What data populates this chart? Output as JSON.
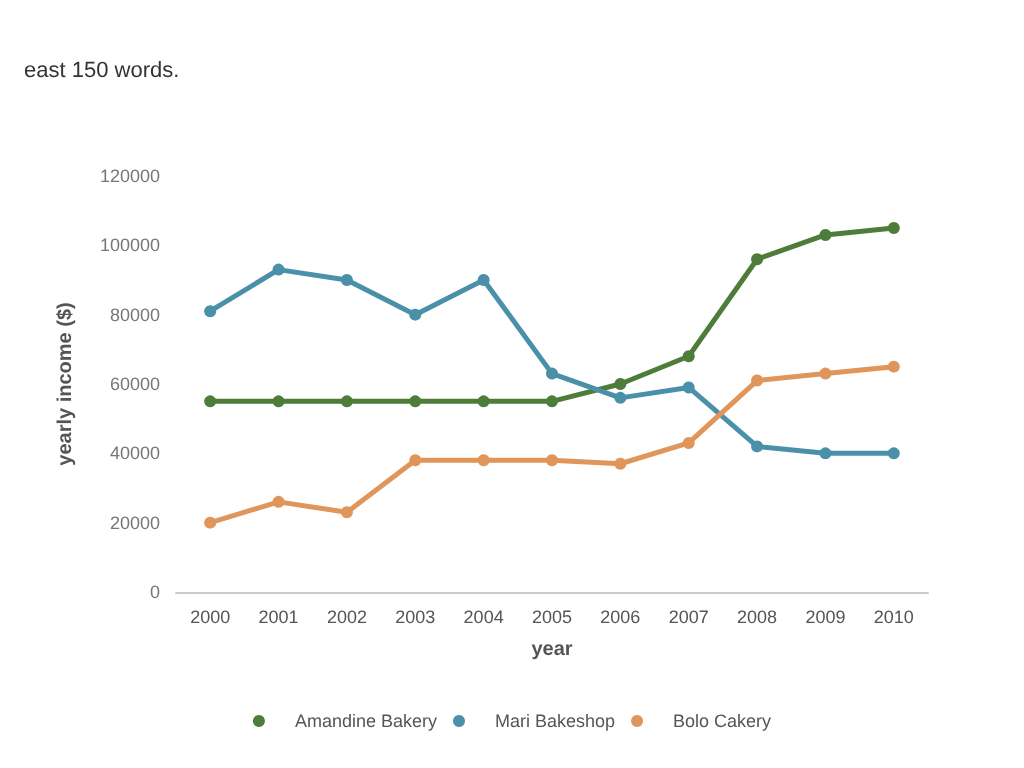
{
  "chart_data": {
    "type": "line",
    "xlabel": "year",
    "ylabel": "yearly income ($)",
    "annotations": [
      "east 150 words."
    ],
    "categories": [
      "2000",
      "2001",
      "2002",
      "2003",
      "2004",
      "2005",
      "2006",
      "2007",
      "2008",
      "2009",
      "2010"
    ],
    "series": [
      {
        "name": "Amandine Bakery",
        "color": "#4e7d3a",
        "values": [
          55000,
          55000,
          55000,
          55000,
          55000,
          55000,
          60000,
          68000,
          96000,
          103000,
          105000
        ]
      },
      {
        "name": "Mari Bakeshop",
        "color": "#4a90a8",
        "values": [
          81000,
          93000,
          90000,
          80000,
          90000,
          63000,
          56000,
          59000,
          42000,
          40000,
          40000
        ]
      },
      {
        "name": "Bolo Cakery",
        "color": "#e0965a",
        "values": [
          20000,
          26000,
          23000,
          38000,
          38000,
          38000,
          37000,
          43000,
          61000,
          63000,
          65000
        ]
      }
    ],
    "ylim": [
      0,
      120000
    ],
    "yticks": [
      0,
      20000,
      40000,
      60000,
      80000,
      100000,
      120000
    ],
    "grid": false,
    "legend": "bottom",
    "marker": "circle",
    "line_style": "solid"
  }
}
